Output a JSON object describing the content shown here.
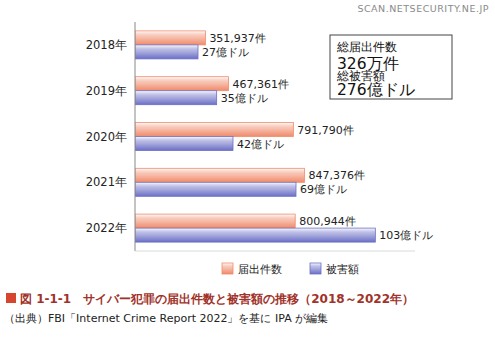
{
  "chart_data": {
    "type": "bar",
    "orientation": "horizontal",
    "title": "図 1-1-1　サイバー犯罪の届出件数と被害額の推移（2018～2022年）",
    "subtitle": "（出典）FBI「Internet Crime Report 2022」を基に IPA が編集",
    "watermark": "SCAN.NETSECURITY.NE.JP",
    "annotations": [
      "総届出件数",
      "326万件",
      "総被害額",
      "276億ドル"
    ],
    "categories": [
      "2018年",
      "2019年",
      "2020年",
      "2021年",
      "2022年"
    ],
    "ylim": [
      0,
      1400000
    ],
    "y2lim": [
      0,
      120
    ],
    "tick_labels": false,
    "grid": false,
    "legend": "bottom",
    "data_labels": true,
    "series": [
      {
        "name": "届出件数",
        "color": "#f08a6a",
        "values": [
          351937,
          467361,
          791790,
          847376,
          800944
        ],
        "value_labels": [
          "351,937件",
          "467,361件",
          "791,790件",
          "847,376件",
          "800,944件"
        ]
      },
      {
        "name": "被害額",
        "color": "#6b6fc6",
        "axis": "y2",
        "values": [
          27,
          35,
          42,
          69,
          103
        ],
        "value_labels": [
          "27億ドル",
          "35億ドル",
          "42億ドル",
          "69億ドル",
          "103億ドル"
        ]
      }
    ]
  }
}
